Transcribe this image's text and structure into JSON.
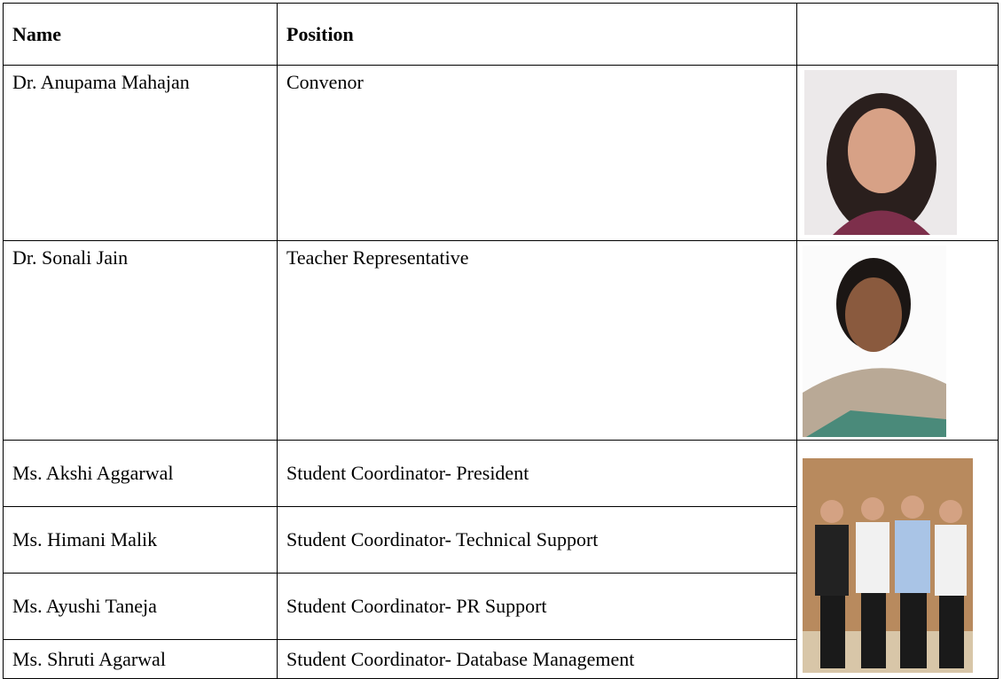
{
  "table": {
    "header": [
      "Name",
      "Position"
    ],
    "rows": [
      [
        "Dr. Anupama Mahajan",
        "Convenor"
      ],
      [
        "Dr. Sonali Jain",
        "Teacher Representative"
      ],
      [
        "Ms. Akshi Aggarwal",
        "Student Coordinator- President"
      ],
      [
        "Ms. Himani Malik",
        "Student Coordinator- Technical Support"
      ],
      [
        "Ms. Ayushi Taneja",
        "Student Coordinator- PR Support"
      ],
      [
        "Ms. Shruti Agarwal",
        "Student Coordinator- Database Management"
      ]
    ]
  }
}
